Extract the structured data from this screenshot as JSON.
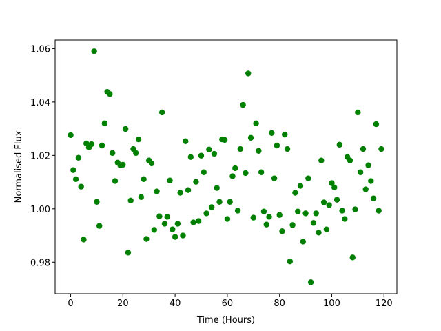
{
  "chart_data": {
    "type": "scatter",
    "x_label": "Time (Hours)",
    "y_label": "Normalised Flux",
    "color": "#008000",
    "x": [
      0,
      1,
      2,
      3,
      4,
      5,
      6,
      7,
      8,
      9,
      10,
      11,
      12,
      13,
      14,
      15,
      16,
      17,
      18,
      19,
      20,
      21,
      22,
      23,
      24,
      25,
      26,
      27,
      28,
      29,
      30,
      31,
      32,
      33,
      34,
      35,
      36,
      37,
      38,
      39,
      40,
      41,
      42,
      43,
      44,
      45,
      46,
      47,
      48,
      49,
      50,
      51,
      52,
      53,
      54,
      55,
      56,
      57,
      58,
      59,
      60,
      61,
      62,
      63,
      64,
      65,
      66,
      67,
      68,
      69,
      70,
      71,
      72,
      73,
      74,
      75,
      76,
      77,
      78,
      79,
      80,
      81,
      82,
      83,
      84,
      85,
      86,
      87,
      88,
      89,
      90,
      91,
      92,
      93,
      94,
      95,
      96,
      97,
      98,
      99,
      100,
      101,
      102,
      103,
      104,
      105,
      106,
      107,
      108,
      109,
      110,
      111,
      112,
      113,
      114,
      115,
      116,
      117,
      118,
      119
    ],
    "values": [
      1.0276,
      1.0145,
      1.0111,
      1.0191,
      1.0083,
      0.9885,
      1.0245,
      1.023,
      1.0242,
      1.059,
      1.0026,
      0.9936,
      1.0237,
      1.032,
      1.0438,
      1.043,
      1.0209,
      1.0104,
      1.0173,
      1.0163,
      1.0165,
      1.0299,
      0.9836,
      1.0031,
      1.0224,
      1.0209,
      1.026,
      1.0044,
      1.0111,
      0.9887,
      1.0181,
      1.017,
      0.9921,
      1.0065,
      0.9972,
      1.0361,
      0.9944,
      0.997,
      1.0106,
      0.9923,
      0.9895,
      0.9944,
      1.006,
      0.99,
      1.0253,
      1.007,
      1.0194,
      0.9949,
      1.0101,
      0.9954,
      1.0199,
      1.0137,
      0.9983,
      1.0222,
      1.0006,
      1.0206,
      1.0078,
      1.0026,
      1.026,
      1.0258,
      0.9962,
      1.0026,
      1.0122,
      1.0152,
      0.9993,
      1.0224,
      1.0389,
      1.0134,
      1.0507,
      1.0266,
      0.9967,
      1.032,
      1.0217,
      1.0137,
      0.999,
      0.9941,
      0.997,
      1.0284,
      1.0114,
      1.0237,
      0.9977,
      0.9916,
      1.0278,
      1.0224,
      0.9803,
      0.9939,
      1.006,
      0.999,
      1.0086,
      0.9877,
      0.9983,
      1.0114,
      0.9725,
      0.9947,
      0.9983,
      0.9911,
      1.0181,
      1.0024,
      0.9923,
      1.0014,
      1.0096,
      1.008,
      1.0034,
      1.024,
      0.9993,
      0.9962,
      1.0194,
      1.0181,
      0.9818,
      0.9998,
      1.0361,
      1.0137,
      1.0224,
      1.0073,
      1.0163,
      1.0104,
      1.0039,
      1.0317,
      0.9993,
      1.0224
    ],
    "xlim": [
      -5.95,
      124.95
    ],
    "xticks": [
      0,
      20,
      40,
      60,
      80,
      100,
      120
    ],
    "ylim": [
      0.9682,
      1.0632
    ],
    "yticks": [
      0.98,
      {
        "value": 1,
        "label": "1.00"
      },
      1.02,
      1.04,
      1.06
    ]
  }
}
